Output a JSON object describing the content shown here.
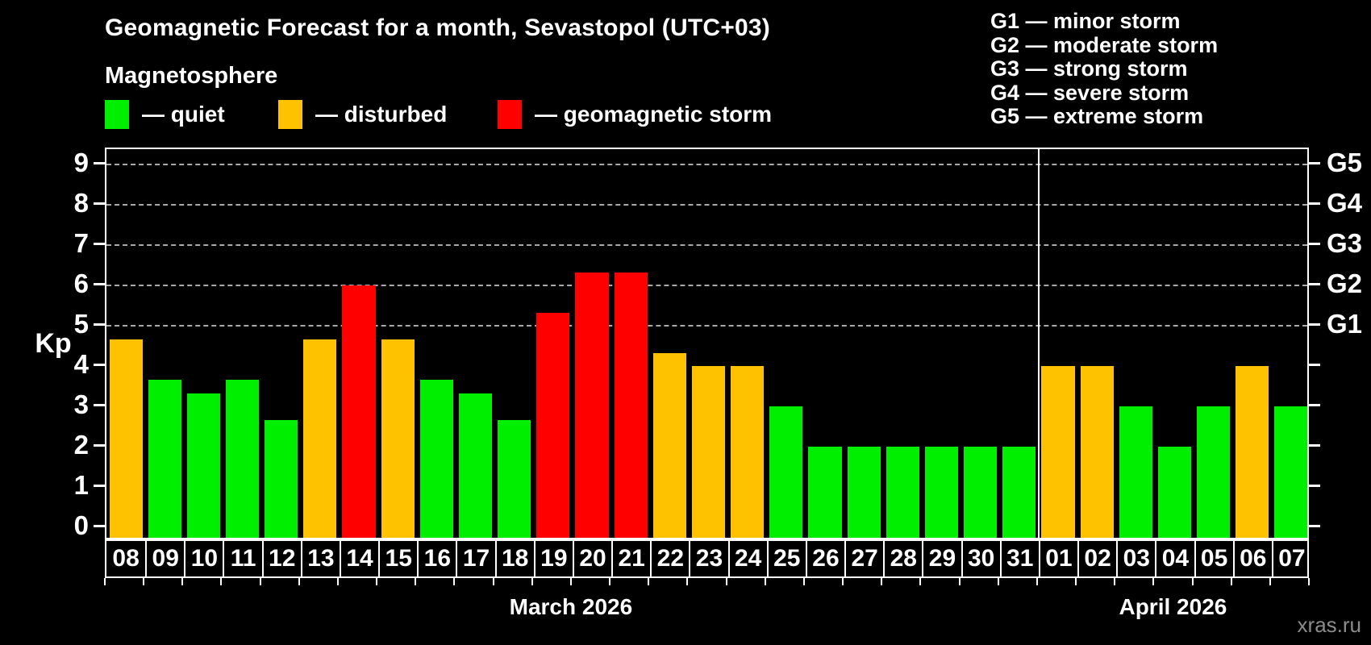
{
  "title": "Geomagnetic Forecast for a month, Sevastopol (UTC+03)",
  "subtitle": "Magnetosphere",
  "legend": {
    "quiet": {
      "label": "— quiet",
      "color": "#00EE00"
    },
    "disturbed": {
      "label": "— disturbed",
      "color": "#FFC200"
    },
    "storm": {
      "label": "— geomagnetic storm",
      "color": "#FF0000"
    }
  },
  "storm_scale": [
    "G1 — minor storm",
    "G2 — moderate storm",
    "G3 — strong storm",
    "G4 — severe storm",
    "G5 — extreme storm"
  ],
  "watermark": "xras.ru",
  "chart_data": {
    "type": "bar",
    "title": "Geomagnetic Forecast for a month, Sevastopol (UTC+03)",
    "ylabel": "Kp",
    "ylim": [
      0,
      9.4
    ],
    "yticks": [
      0,
      1,
      2,
      3,
      4,
      5,
      6,
      7,
      8,
      9
    ],
    "grid_levels": [
      5,
      6,
      7,
      8,
      9
    ],
    "grid_style": "dashed",
    "legend_position": "top-left",
    "right_axis": [
      {
        "kp": 5,
        "label": "G1"
      },
      {
        "kp": 6,
        "label": "G2"
      },
      {
        "kp": 7,
        "label": "G3"
      },
      {
        "kp": 8,
        "label": "G4"
      },
      {
        "kp": 9,
        "label": "G5"
      }
    ],
    "months": [
      {
        "label": "March 2026",
        "days": [
          {
            "day": "08",
            "kp": 4.67,
            "state": "disturbed"
          },
          {
            "day": "09",
            "kp": 3.67,
            "state": "quiet"
          },
          {
            "day": "10",
            "kp": 3.33,
            "state": "quiet"
          },
          {
            "day": "11",
            "kp": 3.67,
            "state": "quiet"
          },
          {
            "day": "12",
            "kp": 2.67,
            "state": "quiet"
          },
          {
            "day": "13",
            "kp": 4.67,
            "state": "disturbed"
          },
          {
            "day": "14",
            "kp": 6.0,
            "state": "storm"
          },
          {
            "day": "15",
            "kp": 4.67,
            "state": "disturbed"
          },
          {
            "day": "16",
            "kp": 3.67,
            "state": "quiet"
          },
          {
            "day": "17",
            "kp": 3.33,
            "state": "quiet"
          },
          {
            "day": "18",
            "kp": 2.67,
            "state": "quiet"
          },
          {
            "day": "19",
            "kp": 5.33,
            "state": "storm"
          },
          {
            "day": "20",
            "kp": 6.33,
            "state": "storm"
          },
          {
            "day": "21",
            "kp": 6.33,
            "state": "storm"
          },
          {
            "day": "22",
            "kp": 4.33,
            "state": "disturbed"
          },
          {
            "day": "23",
            "kp": 4.0,
            "state": "disturbed"
          },
          {
            "day": "24",
            "kp": 4.0,
            "state": "disturbed"
          },
          {
            "day": "25",
            "kp": 3.0,
            "state": "quiet"
          },
          {
            "day": "26",
            "kp": 2.0,
            "state": "quiet"
          },
          {
            "day": "27",
            "kp": 2.0,
            "state": "quiet"
          },
          {
            "day": "28",
            "kp": 2.0,
            "state": "quiet"
          },
          {
            "day": "29",
            "kp": 2.0,
            "state": "quiet"
          },
          {
            "day": "30",
            "kp": 2.0,
            "state": "quiet"
          },
          {
            "day": "31",
            "kp": 2.0,
            "state": "quiet"
          }
        ]
      },
      {
        "label": "April 2026",
        "days": [
          {
            "day": "01",
            "kp": 4.0,
            "state": "disturbed"
          },
          {
            "day": "02",
            "kp": 4.0,
            "state": "disturbed"
          },
          {
            "day": "03",
            "kp": 3.0,
            "state": "quiet"
          },
          {
            "day": "04",
            "kp": 2.0,
            "state": "quiet"
          },
          {
            "day": "05",
            "kp": 3.0,
            "state": "quiet"
          },
          {
            "day": "06",
            "kp": 4.0,
            "state": "disturbed"
          },
          {
            "day": "07",
            "kp": 3.0,
            "state": "quiet"
          }
        ]
      }
    ]
  }
}
